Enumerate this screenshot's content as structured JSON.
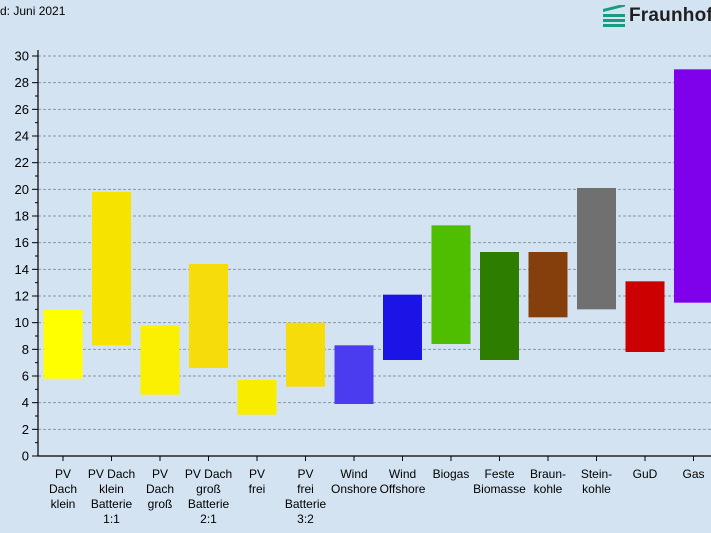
{
  "header_note": "d: Juni 2021",
  "logo": {
    "text": "Fraunhof",
    "icon": "fraunhofer-logo-icon",
    "color": "#179c7d"
  },
  "chart_data": {
    "type": "bar",
    "subtype": "floating-range",
    "title": "",
    "xlabel": "",
    "ylabel": "",
    "ylim": [
      0,
      30
    ],
    "yticks": [
      0,
      2,
      4,
      6,
      8,
      10,
      12,
      14,
      16,
      18,
      20,
      22,
      24,
      26,
      28,
      30
    ],
    "grid": true,
    "categories": [
      [
        "PV",
        "Dach",
        "klein"
      ],
      [
        "PV Dach",
        "klein",
        "Batterie",
        "1:1"
      ],
      [
        "PV",
        "Dach",
        "groß"
      ],
      [
        "PV Dach",
        "groß",
        "Batterie",
        "2:1"
      ],
      [
        "PV",
        "frei"
      ],
      [
        "PV",
        "frei",
        "Batterie",
        "3:2"
      ],
      [
        "Wind",
        "Onshore"
      ],
      [
        "Wind",
        "Offshore"
      ],
      [
        "Biogas"
      ],
      [
        "Feste",
        "Biomasse"
      ],
      [
        "Braun-",
        "kohle"
      ],
      [
        "Stein-",
        "kohle"
      ],
      [
        "GuD"
      ],
      [
        "Gas"
      ]
    ],
    "ranges": [
      [
        5.8,
        11.0
      ],
      [
        8.3,
        19.8
      ],
      [
        4.6,
        9.8
      ],
      [
        6.6,
        14.4
      ],
      [
        3.1,
        5.7
      ],
      [
        5.2,
        10.0
      ],
      [
        3.9,
        8.3
      ],
      [
        7.2,
        12.1
      ],
      [
        8.4,
        17.3
      ],
      [
        7.2,
        15.3
      ],
      [
        10.4,
        15.3
      ],
      [
        11.0,
        20.1
      ],
      [
        7.8,
        13.1
      ],
      [
        11.5,
        29.0
      ]
    ],
    "colors": [
      "#ffff00",
      "#f7e300",
      "#fbf000",
      "#f5dc0a",
      "#f8ec00",
      "#f5dc0a",
      "#4b3cf0",
      "#1a14e6",
      "#50be00",
      "#2c7d00",
      "#853f0c",
      "#707070",
      "#cc0000",
      "#7f00ea"
    ]
  }
}
